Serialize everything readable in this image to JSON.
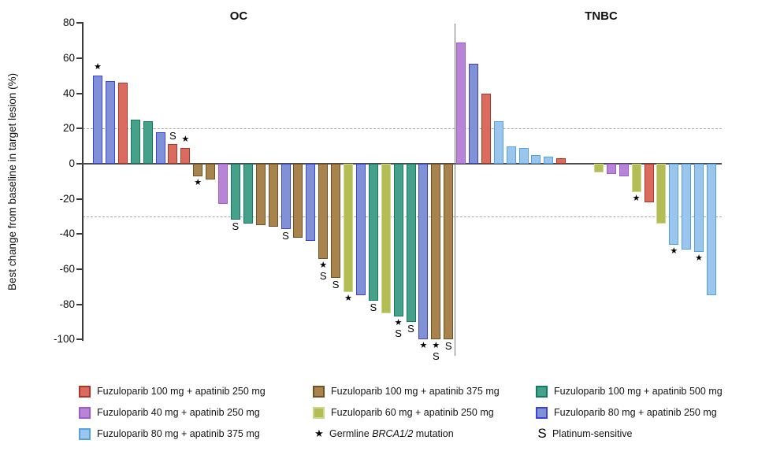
{
  "chart_data": {
    "type": "bar",
    "subtype": "waterfall",
    "title": "",
    "xlabel": "",
    "ylabel": "Best change from baseline in target lesion (%)",
    "ylim": [
      -100,
      80
    ],
    "yticks": [
      80,
      60,
      40,
      20,
      0,
      -20,
      -40,
      -60,
      -80,
      -100
    ],
    "reference_lines": [
      20,
      -30
    ],
    "grid": false,
    "colors": {
      "fz100_ap250": {
        "label": "Fuzuloparib 100 mg + apatinib 250 mg",
        "fill": "#d96c5f",
        "border": "#b03427"
      },
      "fz40_ap250": {
        "label": "Fuzuloparib 40 mg + apatinib 250 mg",
        "fill": "#b884d8",
        "border": "#9c5ecf"
      },
      "fz80_ap375": {
        "label": "Fuzuloparib 80 mg + apatinib 375 mg",
        "fill": "#9ac6ee",
        "border": "#54a4e4"
      },
      "fz100_ap375": {
        "label": "Fuzuloparib 100 mg + apatinib 375 mg",
        "fill": "#a8834e",
        "border": "#6e5222"
      },
      "fz60_ap250": {
        "label": "Fuzuloparib 60 mg + apatinib 250 mg",
        "fill": "#b3bc55",
        "border": "#ccd88b"
      },
      "fz100_ap500": {
        "label": "Fuzuloparib 100 mg + apatinib 500 mg",
        "fill": "#47a089",
        "border": "#107a62"
      },
      "fz80_ap250": {
        "label": "Fuzuloparib 80 mg + apatinib 250 mg",
        "fill": "#8191d6",
        "border": "#3e42d8"
      }
    },
    "markers": {
      "star": "Germline BRCA1/2 mutation",
      "S": "Platinum-sensitive"
    },
    "groups": [
      {
        "title": "OC",
        "bars": [
          {
            "v": 50,
            "c": "fz80_ap250",
            "m": [
              "star"
            ]
          },
          {
            "v": 47,
            "c": "fz80_ap250"
          },
          {
            "v": 46,
            "c": "fz100_ap250"
          },
          {
            "v": 25,
            "c": "fz100_ap500"
          },
          {
            "v": 24,
            "c": "fz100_ap500"
          },
          {
            "v": 18,
            "c": "fz80_ap250"
          },
          {
            "v": 11,
            "c": "fz100_ap250",
            "m": [
              "S"
            ]
          },
          {
            "v": 9,
            "c": "fz100_ap250",
            "m": [
              "star"
            ]
          },
          {
            "v": -7,
            "c": "fz100_ap375",
            "m": [
              "star"
            ]
          },
          {
            "v": -9,
            "c": "fz100_ap375"
          },
          {
            "v": -23,
            "c": "fz40_ap250"
          },
          {
            "v": -32,
            "c": "fz100_ap500",
            "m": [
              "S"
            ]
          },
          {
            "v": -34,
            "c": "fz100_ap500"
          },
          {
            "v": -35,
            "c": "fz100_ap375"
          },
          {
            "v": -36,
            "c": "fz100_ap375"
          },
          {
            "v": -37,
            "c": "fz80_ap250",
            "m": [
              "S"
            ]
          },
          {
            "v": -42,
            "c": "fz100_ap375"
          },
          {
            "v": -44,
            "c": "fz80_ap250"
          },
          {
            "v": -54,
            "c": "fz100_ap375",
            "m": [
              "star",
              "S"
            ]
          },
          {
            "v": -65,
            "c": "fz100_ap375",
            "m": [
              "S"
            ]
          },
          {
            "v": -73,
            "c": "fz60_ap250",
            "m": [
              "star"
            ]
          },
          {
            "v": -75,
            "c": "fz80_ap250"
          },
          {
            "v": -78,
            "c": "fz100_ap500",
            "m": [
              "S"
            ]
          },
          {
            "v": -85,
            "c": "fz60_ap250"
          },
          {
            "v": -87,
            "c": "fz100_ap500",
            "m": [
              "star",
              "S"
            ]
          },
          {
            "v": -90,
            "c": "fz100_ap500",
            "m": [
              "S"
            ]
          },
          {
            "v": -100,
            "c": "fz80_ap250",
            "m": [
              "star"
            ]
          },
          {
            "v": -100,
            "c": "fz100_ap375",
            "m": [
              "star",
              "S"
            ]
          },
          {
            "v": -100,
            "c": "fz100_ap375",
            "m": [
              "S"
            ]
          }
        ]
      },
      {
        "title": "TNBC",
        "bars": [
          {
            "v": 69,
            "c": "fz40_ap250"
          },
          {
            "v": 57,
            "c": "fz80_ap250"
          },
          {
            "v": 40,
            "c": "fz100_ap250"
          },
          {
            "v": 24,
            "c": "fz80_ap375"
          },
          {
            "v": 10,
            "c": "fz80_ap375"
          },
          {
            "v": 9,
            "c": "fz80_ap375"
          },
          {
            "v": 5,
            "c": "fz80_ap375"
          },
          {
            "v": 4,
            "c": "fz80_ap375"
          },
          {
            "v": 3,
            "c": "fz100_ap250"
          },
          {
            "v": null
          },
          {
            "v": null
          },
          {
            "v": -5,
            "c": "fz60_ap250"
          },
          {
            "v": -6,
            "c": "fz40_ap250"
          },
          {
            "v": -7,
            "c": "fz40_ap250"
          },
          {
            "v": -16,
            "c": "fz60_ap250",
            "m": [
              "star"
            ]
          },
          {
            "v": -22,
            "c": "fz100_ap250"
          },
          {
            "v": -34,
            "c": "fz60_ap250"
          },
          {
            "v": -46,
            "c": "fz80_ap375",
            "m": [
              "star"
            ]
          },
          {
            "v": -49,
            "c": "fz80_ap375"
          },
          {
            "v": -50,
            "c": "fz80_ap375",
            "m": [
              "star"
            ]
          },
          {
            "v": -75,
            "c": "fz80_ap375"
          }
        ]
      }
    ]
  },
  "legend": {
    "columns": [
      [
        {
          "type": "swatch",
          "color": "fz100_ap250"
        },
        {
          "type": "swatch",
          "color": "fz40_ap250"
        },
        {
          "type": "swatch",
          "color": "fz80_ap375"
        }
      ],
      [
        {
          "type": "swatch",
          "color": "fz100_ap375"
        },
        {
          "type": "swatch",
          "color": "fz60_ap250"
        },
        {
          "type": "symbol",
          "symbol": "star",
          "pre": "Germline ",
          "italic": "BRCA1/2",
          "post": " mutation"
        }
      ],
      [
        {
          "type": "swatch",
          "color": "fz100_ap500"
        },
        {
          "type": "swatch",
          "color": "fz80_ap250"
        },
        {
          "type": "symbol",
          "symbol": "S",
          "text": "Platinum-sensitive"
        }
      ]
    ]
  }
}
